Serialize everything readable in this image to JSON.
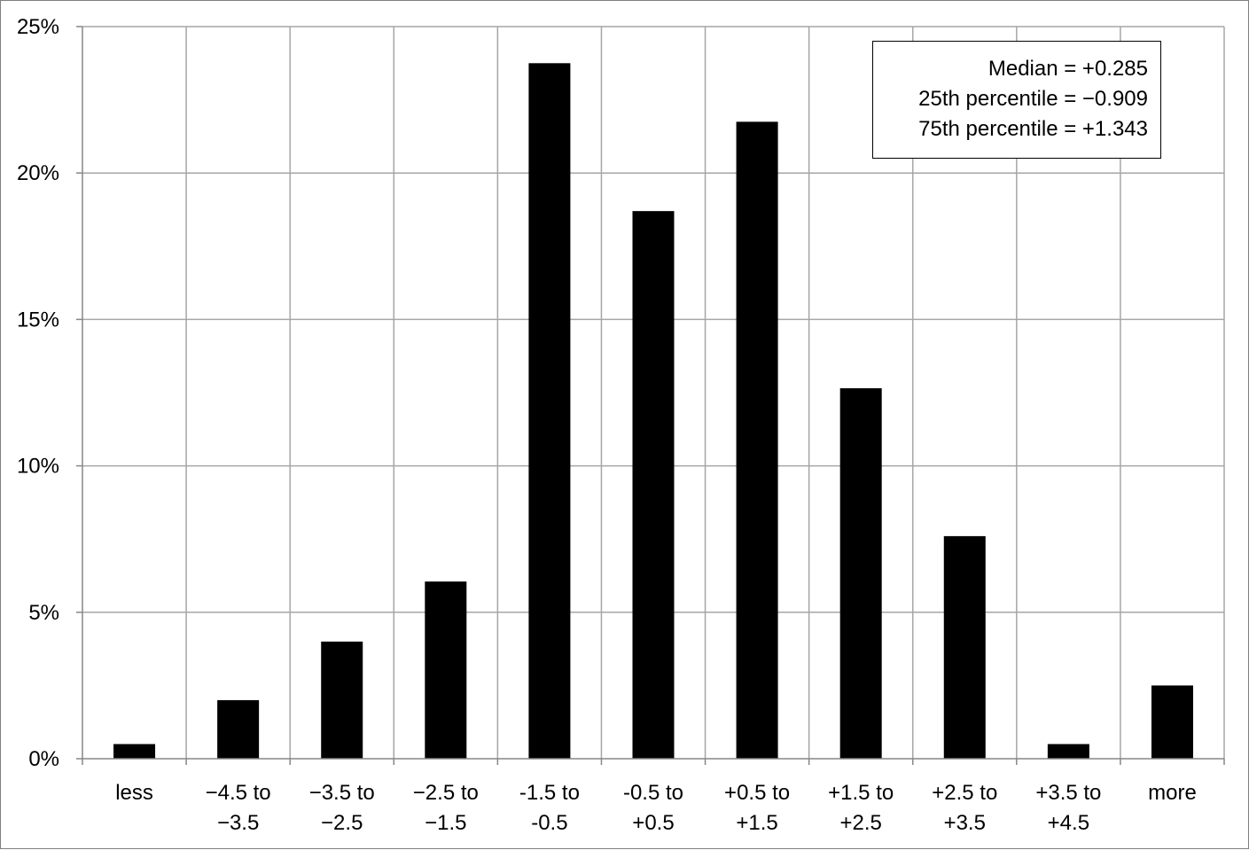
{
  "chart_data": {
    "type": "bar",
    "title": "",
    "xlabel": "",
    "ylabel": "",
    "categories": [
      [
        "less"
      ],
      [
        "−4.5 to",
        "−3.5"
      ],
      [
        "−3.5 to",
        "−2.5"
      ],
      [
        "−2.5 to",
        "−1.5"
      ],
      [
        "-1.5 to",
        "-0.5"
      ],
      [
        "-0.5 to",
        "+0.5"
      ],
      [
        "+0.5 to",
        "+1.5"
      ],
      [
        "+1.5 to",
        "+2.5"
      ],
      [
        "+2.5 to",
        "+3.5"
      ],
      [
        "+3.5 to",
        "+4.5"
      ],
      [
        "more"
      ]
    ],
    "values": [
      0.5,
      2.0,
      4.0,
      6.05,
      23.75,
      18.7,
      21.75,
      12.65,
      7.6,
      0.5,
      2.5
    ],
    "ylim": [
      0,
      25
    ],
    "yticks": [
      0,
      5,
      10,
      15,
      20,
      25
    ],
    "ytick_labels": [
      "0%",
      "5%",
      "10%",
      "15%",
      "20%",
      "25%"
    ],
    "grid": true,
    "bar_color": "#000000",
    "grid_color": "#a6a6a6",
    "annotations": [
      "Median = +0.285",
      "25th percentile = −0.909",
      "75th percentile = +1.343"
    ]
  }
}
